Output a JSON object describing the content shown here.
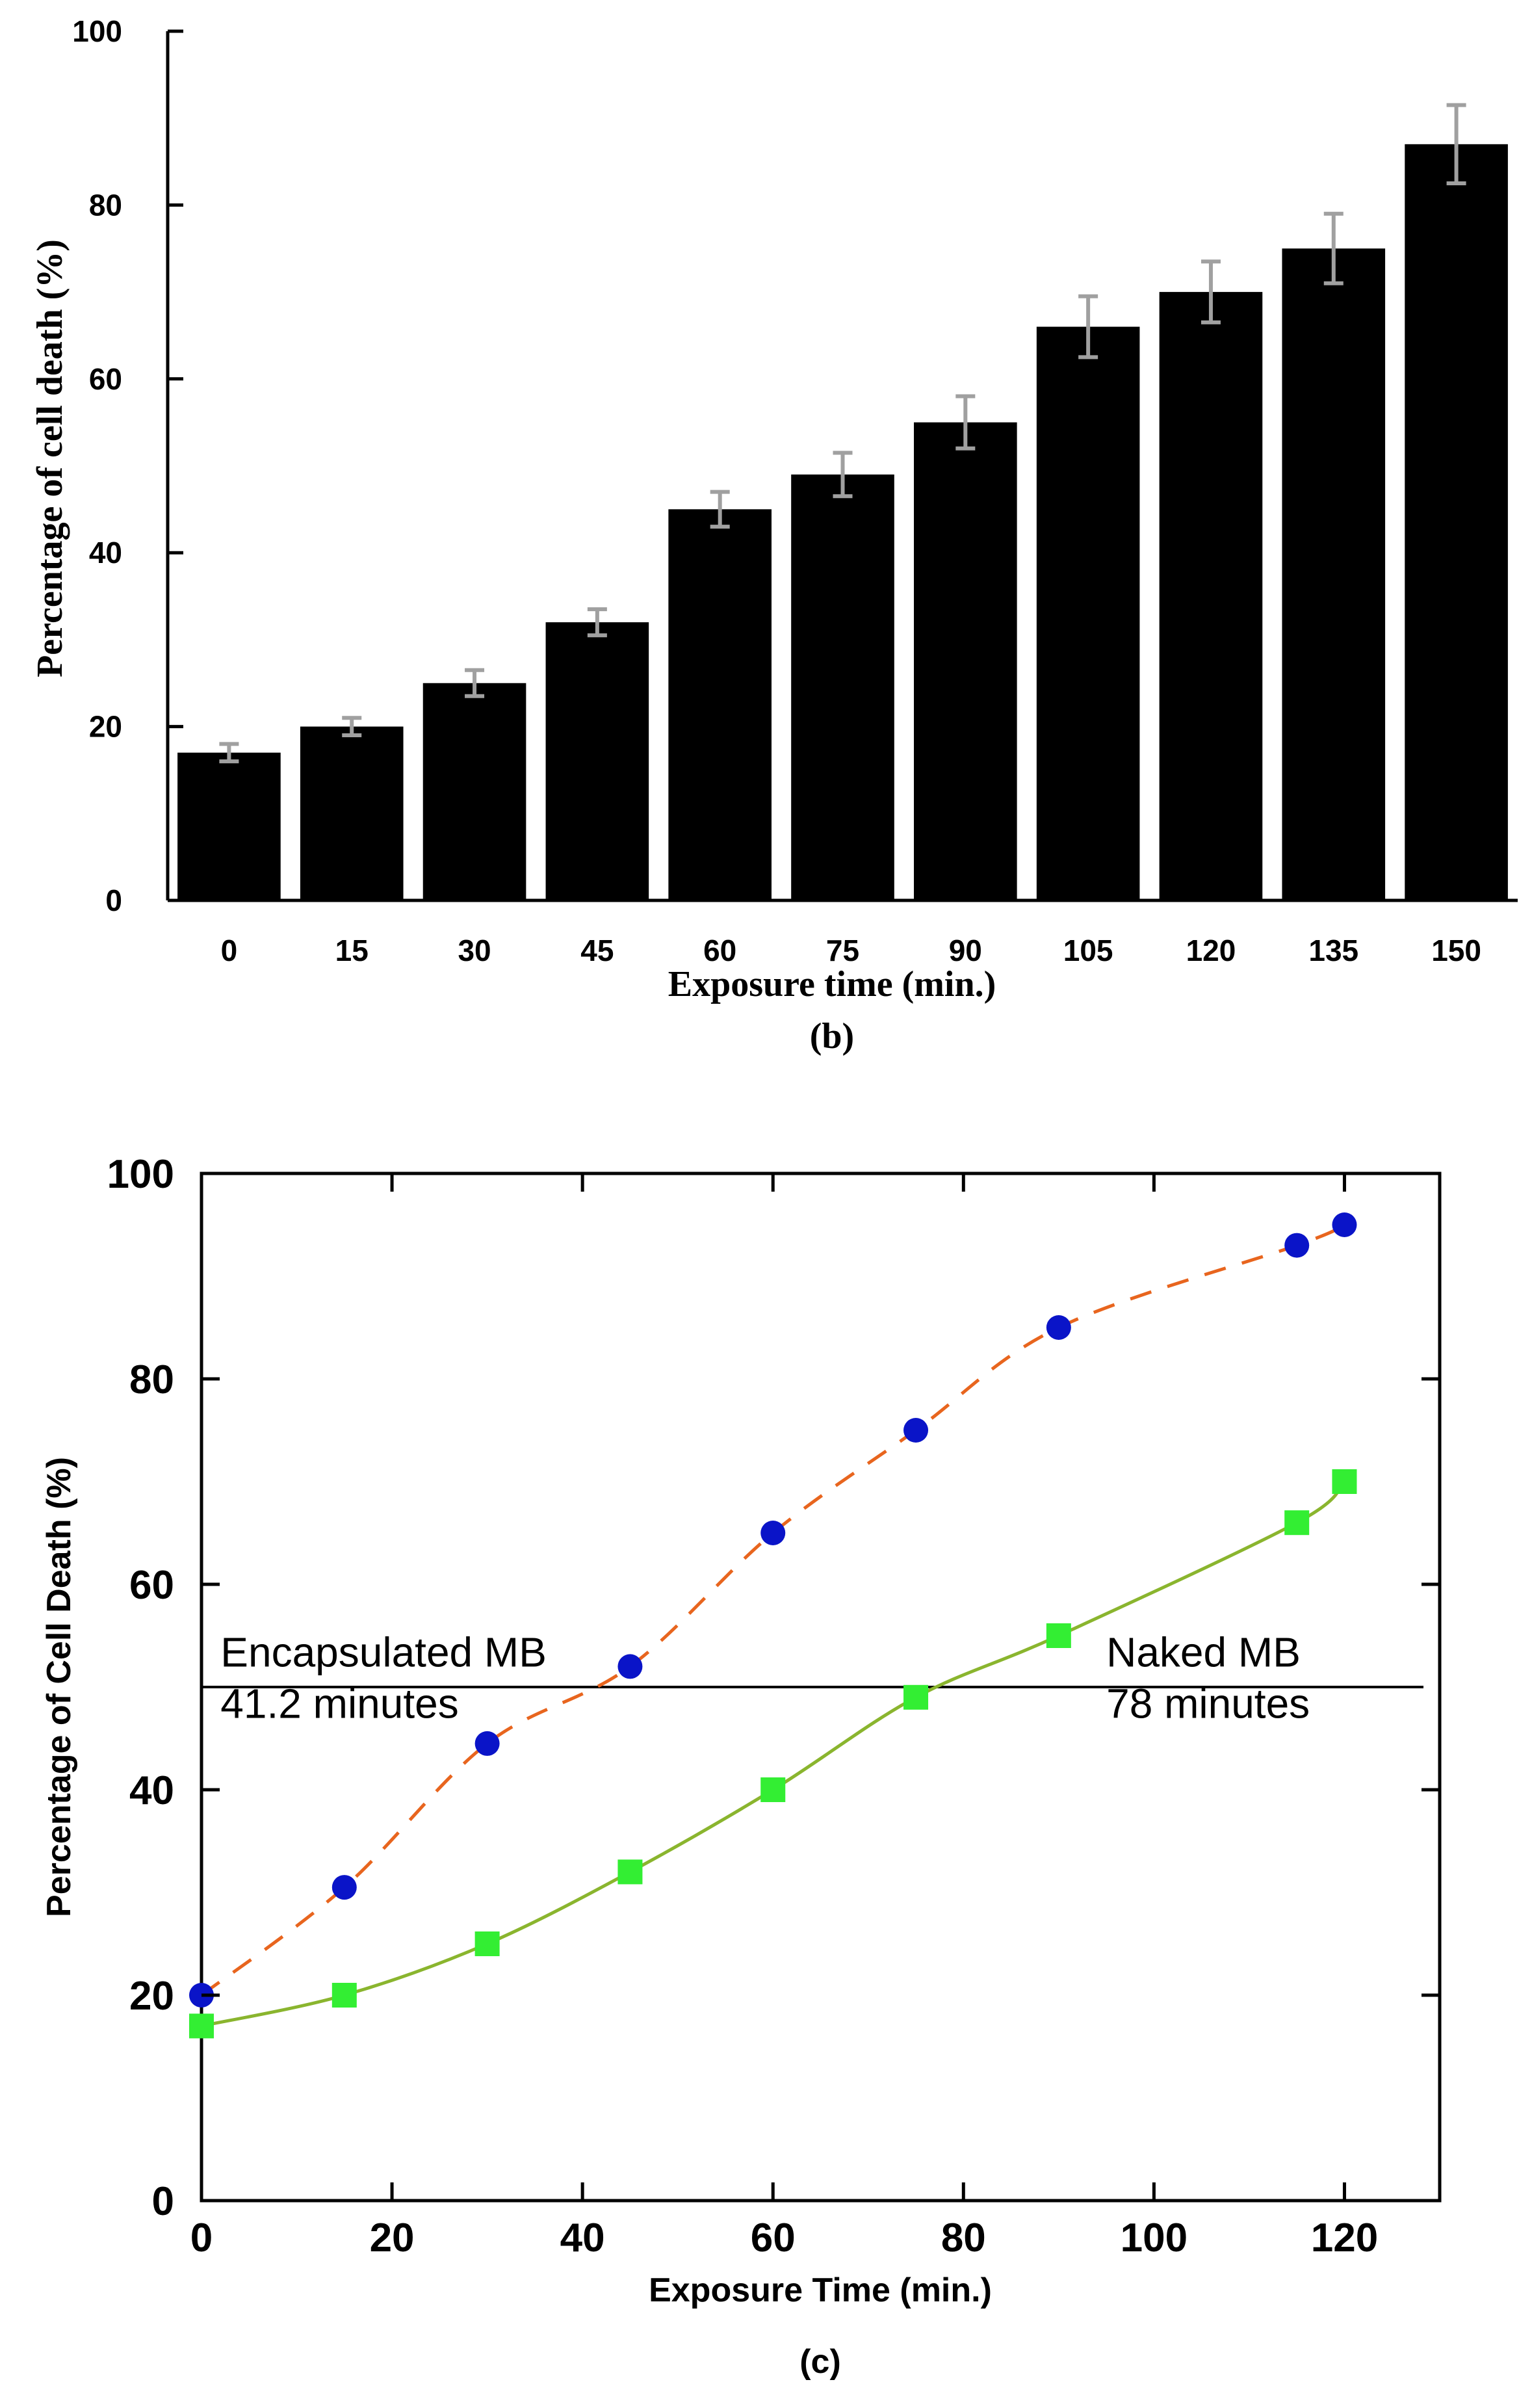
{
  "chart_data": [
    {
      "type": "bar",
      "panel_label": "(b)",
      "xlabel": "Exposure time (min.)",
      "ylabel": "Percentage of cell death (%)",
      "ylim": [
        0,
        100
      ],
      "yticks": [
        0,
        20,
        40,
        60,
        80,
        100
      ],
      "categories": [
        "0",
        "15",
        "30",
        "45",
        "60",
        "75",
        "90",
        "105",
        "120",
        "135",
        "150"
      ],
      "values": [
        17,
        20,
        25,
        32,
        45,
        49,
        55,
        66,
        70,
        75,
        87
      ],
      "errors": [
        1,
        1,
        1.5,
        1.5,
        2,
        2.5,
        3,
        3.5,
        3.5,
        4,
        4.5
      ],
      "grid": false,
      "colors": {
        "bar": "#000000",
        "error": "#a0a0a0"
      }
    },
    {
      "type": "scatter",
      "panel_label": "(c)",
      "xlabel": "Exposure Time (min.)",
      "ylabel": "Percentage of Cell Death (%)",
      "xlim": [
        0,
        130
      ],
      "ylim": [
        0,
        100
      ],
      "xticks": [
        0,
        20,
        40,
        60,
        80,
        100,
        120
      ],
      "yticks": [
        0,
        20,
        40,
        60,
        80,
        100
      ],
      "grid": false,
      "series": [
        {
          "marker": "circle",
          "color": "#0a14c8",
          "line_color": "#e8651e",
          "line_style": "dashed",
          "x": [
            0,
            15,
            30,
            45,
            60,
            75,
            90,
            115,
            120
          ],
          "y": [
            20,
            30.5,
            44.5,
            52,
            65,
            75,
            85,
            93,
            95
          ]
        },
        {
          "marker": "square",
          "color": "#33ee33",
          "line_color": "#8ab52e",
          "line_style": "solid",
          "x": [
            0,
            15,
            30,
            45,
            60,
            75,
            90,
            115,
            120
          ],
          "y": [
            17,
            20,
            25,
            32,
            40,
            49,
            55,
            66,
            70
          ]
        }
      ],
      "reference_line": {
        "y": 50
      },
      "annotations": [
        {
          "text": "Encapsulated MB",
          "x": 2,
          "y": 52
        },
        {
          "text": "41.2 minutes",
          "x": 2,
          "y": 47
        },
        {
          "text": "Naked MB",
          "x": 95,
          "y": 52
        },
        {
          "text": "78 minutes",
          "x": 95,
          "y": 47
        }
      ]
    }
  ]
}
